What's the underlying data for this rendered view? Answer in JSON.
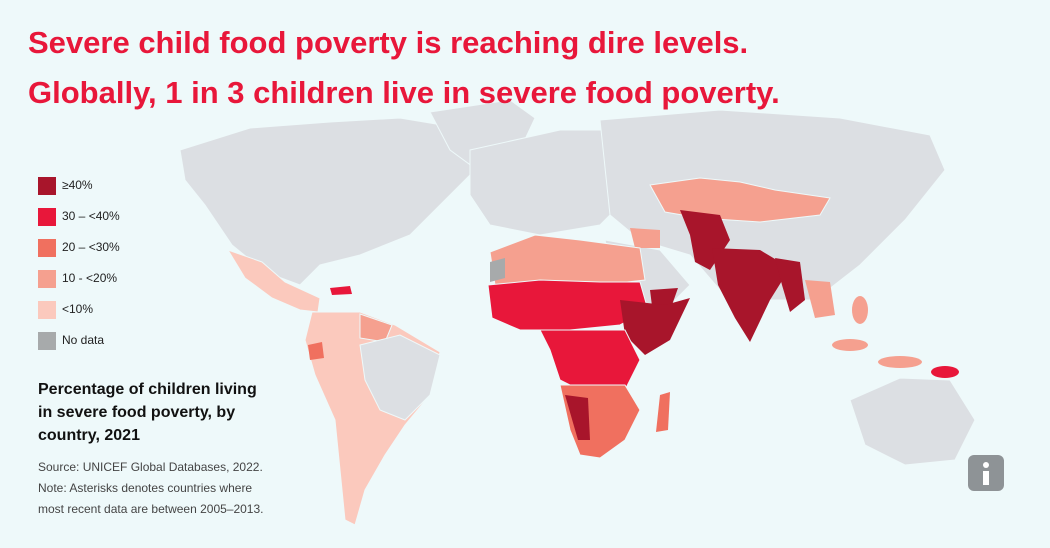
{
  "title_lines": [
    "Severe child food poverty is reaching dire levels.",
    "Globally, 1 in 3 children live in severe food poverty."
  ],
  "legend": [
    {
      "label": "≥40%",
      "color": "#a8152b"
    },
    {
      "label": "30 – <40%",
      "color": "#e8173a"
    },
    {
      "label": "20 – <30%",
      "color": "#f0705f"
    },
    {
      "label": "10 - <20%",
      "color": "#f5a08f"
    },
    {
      "label": "<10%",
      "color": "#fbc9bd"
    },
    {
      "label": "No data",
      "color": "#a7aaab"
    }
  ],
  "caption_lines": [
    "Percentage of children living",
    "in severe food poverty, by",
    "country, 2021"
  ],
  "source_lines": [
    "Source: UNICEF Global Databases, 2022.",
    "Note: Asterisks denotes countries where",
    "most recent data are between 2005–2013."
  ]
}
